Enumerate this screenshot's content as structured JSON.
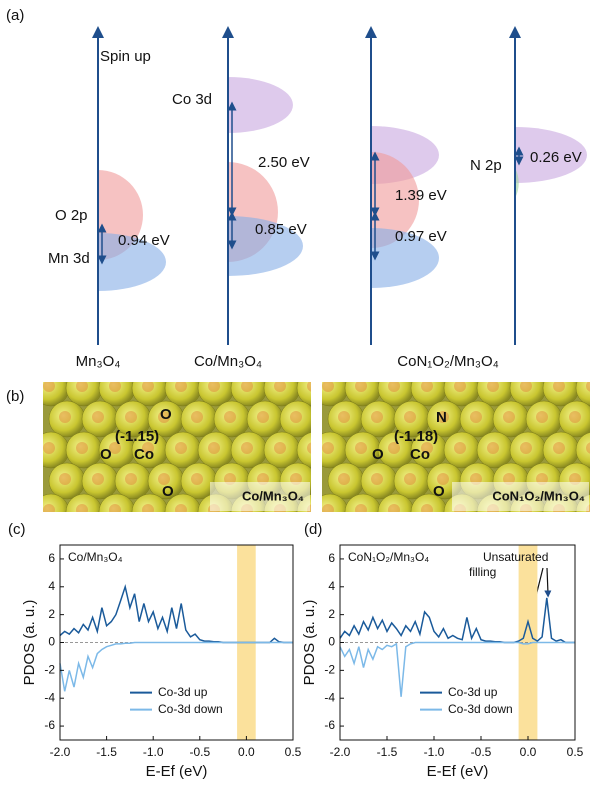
{
  "panel_a": {
    "label": "(a)",
    "spin_label": "Spin up",
    "columns": [
      "Mn₃O₄",
      "Co/Mn₃O₄",
      "CoN₁O₂/Mn₃O₄"
    ],
    "level_labels": [
      "O 2p",
      "Mn 3d",
      "Co 3d",
      "N 2p"
    ],
    "gaps": [
      "0.94 eV",
      "2.50 eV",
      "0.85 eV",
      "1.39 eV",
      "0.97 eV",
      "0.26 eV"
    ]
  },
  "panel_b": {
    "label": "(b)",
    "left": {
      "charge": "(-1.15)",
      "atoms": [
        "O",
        "O",
        "Co",
        "O"
      ],
      "caption": "Co/Mn₃O₄"
    },
    "right": {
      "charge": "(-1.18)",
      "atoms": [
        "N",
        "O",
        "Co",
        "O"
      ],
      "caption": "CoN₁O₂/Mn₃O₄"
    }
  },
  "chart_data": [
    {
      "type": "line",
      "label": "(c)",
      "annotation": "Co/Mn₃O₄",
      "xlabel": "E-Ef (eV)",
      "ylabel": "PDOS (a. u.)",
      "xlim": [
        -2,
        0.5
      ],
      "xticks": [
        {
          "value": -2,
          "label": "-2.0"
        },
        -1.5,
        {
          "value": -1,
          "label": "-1.0"
        },
        -0.5,
        {
          "value": 0,
          "label": "0.0"
        },
        0.5
      ],
      "ylim": [
        -7,
        7
      ],
      "yticks": [
        -6,
        -4,
        -2,
        0,
        2,
        4,
        6
      ],
      "highlight": [
        -0.1,
        0.1
      ],
      "highlight_color": "#fbe19c",
      "x": [
        -2.0,
        -1.95,
        -1.9,
        -1.85,
        -1.8,
        -1.75,
        -1.7,
        -1.65,
        -1.6,
        -1.55,
        -1.5,
        -1.45,
        -1.4,
        -1.35,
        -1.3,
        -1.25,
        -1.2,
        -1.15,
        -1.1,
        -1.05,
        -1.0,
        -0.95,
        -0.9,
        -0.85,
        -0.8,
        -0.75,
        -0.7,
        -0.65,
        -0.6,
        -0.55,
        -0.5,
        -0.45,
        -0.4,
        -0.35,
        -0.3,
        -0.25,
        -0.2,
        -0.15,
        -0.1,
        -0.05,
        0.0,
        0.05,
        0.1,
        0.15,
        0.2,
        0.25,
        0.3,
        0.35,
        0.4,
        0.45,
        0.5
      ],
      "series": [
        {
          "name": "Co-3d up",
          "color": "#1a5a9a",
          "values": [
            0.5,
            0.8,
            0.6,
            1.0,
            0.7,
            1.3,
            0.9,
            1.8,
            0.8,
            2.5,
            1.2,
            1.5,
            2.0,
            3.0,
            4.0,
            2.5,
            3.5,
            1.5,
            2.8,
            1.5,
            2.2,
            1.0,
            1.8,
            0.8,
            2.5,
            1.0,
            2.8,
            0.9,
            0.4,
            0.6,
            0.2,
            0.1,
            0.1,
            0.05,
            0.05,
            0,
            0,
            0,
            0,
            0,
            0,
            0,
            0,
            0,
            0,
            0,
            0.3,
            0.05,
            0,
            0,
            0
          ]
        },
        {
          "name": "Co-3d down",
          "color": "#7cb9e8",
          "values": [
            -1.5,
            -3.5,
            -2.0,
            -3.2,
            -1.5,
            -2.5,
            -1.0,
            -1.8,
            -0.8,
            -0.5,
            -0.3,
            -0.2,
            -0.1,
            -0.1,
            -0.05,
            -0.05,
            0,
            0,
            0,
            0,
            0,
            0,
            0,
            0,
            0,
            0,
            0,
            0,
            0,
            0,
            0,
            0,
            0,
            0,
            0,
            0,
            0,
            0,
            0,
            0,
            0,
            0,
            0,
            0,
            0,
            0,
            0,
            0,
            0,
            0,
            0
          ]
        }
      ]
    },
    {
      "type": "line",
      "label": "(d)",
      "annotation": "CoN₁O₂/Mn₃O₄",
      "note": [
        "Unsaturated",
        "filling"
      ],
      "xlabel": "E-Ef (eV)",
      "ylabel": "PDOS (a. u.)",
      "xlim": [
        -2,
        0.5
      ],
      "xticks": [
        {
          "value": -2,
          "label": "-2.0"
        },
        -1.5,
        {
          "value": -1,
          "label": "-1.0"
        },
        -0.5,
        {
          "value": 0,
          "label": "0.0"
        },
        0.5
      ],
      "ylim": [
        -7,
        7
      ],
      "yticks": [
        -6,
        -4,
        -2,
        0,
        2,
        4,
        6
      ],
      "highlight": [
        -0.1,
        0.1
      ],
      "highlight_color": "#fbe19c",
      "x": [
        -2.0,
        -1.95,
        -1.9,
        -1.85,
        -1.8,
        -1.75,
        -1.7,
        -1.65,
        -1.6,
        -1.55,
        -1.5,
        -1.45,
        -1.4,
        -1.35,
        -1.3,
        -1.25,
        -1.2,
        -1.15,
        -1.1,
        -1.05,
        -1.0,
        -0.95,
        -0.9,
        -0.85,
        -0.8,
        -0.75,
        -0.7,
        -0.65,
        -0.6,
        -0.55,
        -0.5,
        -0.45,
        -0.4,
        -0.35,
        -0.3,
        -0.25,
        -0.2,
        -0.15,
        -0.1,
        -0.05,
        0.0,
        0.05,
        0.1,
        0.15,
        0.2,
        0.25,
        0.3,
        0.35,
        0.4,
        0.45,
        0.5
      ],
      "series": [
        {
          "name": "Co-3d up",
          "color": "#1a5a9a",
          "values": [
            0.3,
            0.8,
            0.5,
            1.2,
            0.6,
            1.5,
            0.9,
            1.8,
            1.0,
            1.6,
            0.8,
            1.4,
            1.0,
            0.5,
            1.2,
            0.8,
            1.5,
            0.6,
            2.2,
            1.8,
            0.8,
            0.4,
            1.0,
            0.3,
            0.5,
            0.3,
            0.2,
            1.8,
            0.3,
            1.0,
            0.2,
            0.1,
            0.1,
            0.05,
            0.05,
            0,
            0,
            0,
            0.1,
            0.3,
            1.5,
            0.3,
            0.1,
            0.4,
            3.2,
            0.3,
            0.1,
            0.2,
            0,
            0,
            0
          ]
        },
        {
          "name": "Co-3d down",
          "color": "#7cb9e8",
          "values": [
            -0.3,
            -1.0,
            -0.5,
            -1.5,
            -0.3,
            -1.8,
            -0.5,
            -1.2,
            -0.3,
            -0.5,
            -0.2,
            -0.3,
            -0.1,
            -3.9,
            -0.3,
            -0.1,
            0,
            0,
            0,
            0,
            0,
            0,
            0,
            0,
            0,
            0,
            0,
            0,
            0,
            0,
            0,
            0,
            0,
            0,
            0,
            0,
            0,
            0,
            0,
            -0.1,
            -0.1,
            0,
            0,
            0,
            0,
            0,
            0,
            0,
            0,
            0,
            0
          ]
        }
      ]
    }
  ]
}
